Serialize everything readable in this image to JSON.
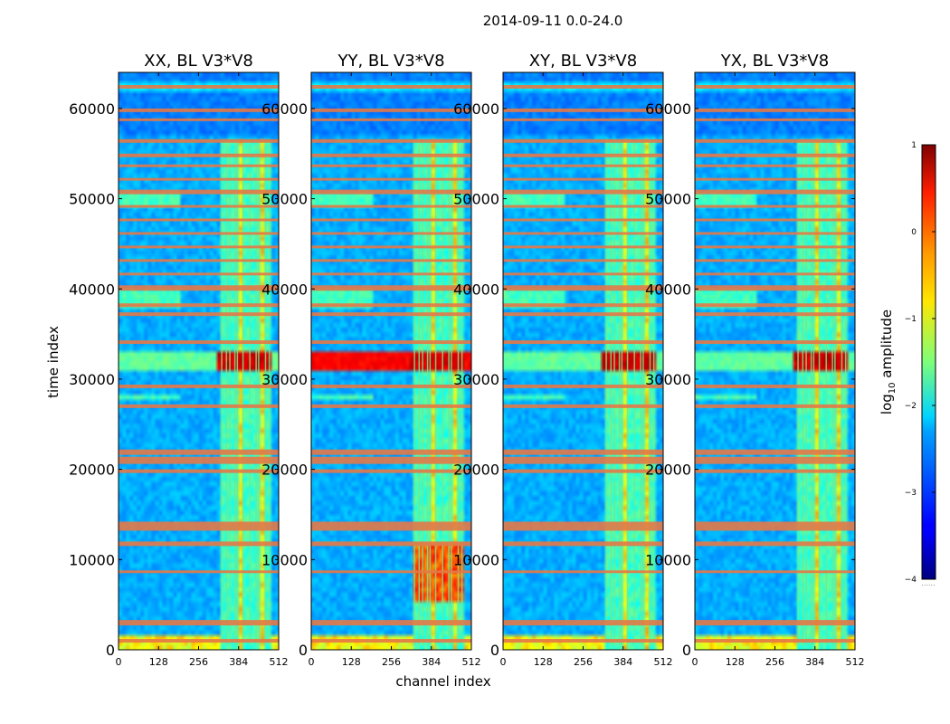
{
  "chart_data": {
    "type": "heatmap",
    "suptitle": "2014-09-11 0.0-24.0",
    "xlabel": "channel index",
    "ylabel": "time index",
    "xlim": [
      0,
      512
    ],
    "ylim": [
      0,
      64000
    ],
    "xticks": [
      0,
      128,
      256,
      384,
      512
    ],
    "yticks": [
      0,
      10000,
      20000,
      30000,
      40000,
      50000,
      60000
    ],
    "panels": [
      {
        "title": "XX, BL V3*V8",
        "strong_band": [
          31000,
          33000
        ],
        "strong_level": 0.55,
        "strong_left": 0.0
      },
      {
        "title": "YY, BL V3*V8",
        "strong_band": [
          31000,
          33000
        ],
        "strong_level": 0.85,
        "strong_left": 0.9
      },
      {
        "title": "XY, BL V3*V8",
        "strong_band": [
          31000,
          33000
        ],
        "strong_level": 0.5,
        "strong_left": 0.0
      },
      {
        "title": "YX, BL V3*V8",
        "strong_band": [
          31000,
          33000
        ],
        "strong_level": 0.5,
        "strong_left": 0.0
      }
    ],
    "rfi_band": {
      "channel_start": 330,
      "channel_end": 490
    },
    "rfi_channels": [
      330,
      345,
      356,
      372,
      380,
      398,
      420,
      440,
      448,
      470,
      482
    ],
    "flagged_time_bands": [
      [
        800,
        1200
      ],
      [
        2700,
        3300
      ],
      [
        8500,
        8800
      ],
      [
        11500,
        12000
      ],
      [
        13200,
        14200
      ],
      [
        19600,
        20000
      ],
      [
        20600,
        21400
      ],
      [
        21600,
        22200
      ],
      [
        26800,
        27200
      ],
      [
        29000,
        29400
      ],
      [
        33900,
        34300
      ],
      [
        37000,
        37400
      ],
      [
        38000,
        38400
      ],
      [
        39800,
        40400
      ],
      [
        41500,
        41800
      ],
      [
        43000,
        43300
      ],
      [
        44500,
        44800
      ],
      [
        46000,
        46300
      ],
      [
        47500,
        47800
      ],
      [
        49000,
        49300
      ],
      [
        50500,
        51000
      ],
      [
        52000,
        52300
      ],
      [
        53500,
        53800
      ],
      [
        54600,
        55000
      ],
      [
        56200,
        56600
      ],
      [
        58600,
        58900
      ],
      [
        59600,
        60000
      ],
      [
        62200,
        62600
      ]
    ],
    "colorbar": {
      "label": "log",
      "label_sub": "10",
      "label_rest": " amplitude",
      "range": [
        -4,
        1
      ],
      "ticks": [
        1,
        0,
        -1,
        -2,
        -3,
        -4
      ],
      "colormap": "jet"
    }
  }
}
